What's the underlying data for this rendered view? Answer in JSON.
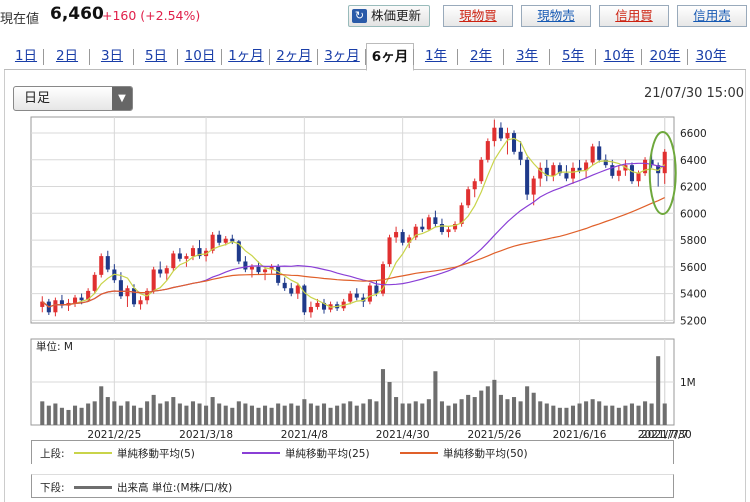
{
  "header": {
    "current_label": "現在値",
    "price": "6,460",
    "change": "+160 (+2.54%)",
    "update_button": "株価更新",
    "buttons": [
      {
        "label": "現物買",
        "kind": "buy"
      },
      {
        "label": "現物売",
        "kind": "sell"
      },
      {
        "label": "信用買",
        "kind": "buy"
      },
      {
        "label": "信用売",
        "kind": "sell"
      }
    ]
  },
  "tabs": [
    "1日",
    "2日",
    "3日",
    "5日",
    "10日",
    "1ヶ月",
    "2ヶ月",
    "3ヶ月",
    "6ヶ月",
    "1年",
    "2年",
    "3年",
    "5年",
    "10年",
    "20年",
    "30年"
  ],
  "selected_tab": "6ヶ月",
  "chart": {
    "interval_select": "日足",
    "datetime": "21/07/30 15:00",
    "volume_unit_label": "単位: M",
    "volume_tick_label": "1M"
  },
  "legend": {
    "upper_label": "上段:",
    "lower_label": "下段:",
    "ma": [
      {
        "label": "単純移動平均(5)",
        "color": "#c9d44a"
      },
      {
        "label": "単純移動平均(25)",
        "color": "#8a3fd6"
      },
      {
        "label": "単純移動平均(50)",
        "color": "#e0602a"
      }
    ],
    "volume_label": "出来高 単位:(M株/口/枚)"
  },
  "colors": {
    "up": "#e03030",
    "down": "#1f3a8a",
    "volume": "#6e6e6e",
    "accent": "#e0204a",
    "highlight_ellipse": "#6ea83c"
  },
  "chart_data": {
    "type": "candlestick",
    "x_labels": [
      "2021/2/25",
      "2021/3/18",
      "2021/4/8",
      "2021/4/30",
      "2021/5/26",
      "2021/6/16",
      "2021/7/7",
      "2021/7/30"
    ],
    "y_ticks": [
      5200,
      5400,
      5600,
      5800,
      6000,
      6200,
      6400,
      6600
    ],
    "ylim": [
      5180,
      6720
    ],
    "volume_ylim": [
      0,
      2.0
    ],
    "volume_ticks": [
      1
    ],
    "candles": [
      [
        5300,
        5380,
        5260,
        5340,
        0.55
      ],
      [
        5340,
        5360,
        5240,
        5260,
        0.45
      ],
      [
        5260,
        5370,
        5230,
        5350,
        0.5
      ],
      [
        5350,
        5390,
        5290,
        5310,
        0.4
      ],
      [
        5310,
        5360,
        5270,
        5330,
        0.35
      ],
      [
        5330,
        5390,
        5300,
        5370,
        0.45
      ],
      [
        5370,
        5400,
        5320,
        5350,
        0.4
      ],
      [
        5350,
        5440,
        5340,
        5420,
        0.5
      ],
      [
        5420,
        5560,
        5400,
        5540,
        0.55
      ],
      [
        5540,
        5700,
        5520,
        5680,
        0.9
      ],
      [
        5680,
        5720,
        5560,
        5580,
        0.65
      ],
      [
        5580,
        5620,
        5480,
        5500,
        0.55
      ],
      [
        5500,
        5560,
        5360,
        5380,
        0.45
      ],
      [
        5380,
        5460,
        5300,
        5440,
        0.55
      ],
      [
        5440,
        5470,
        5300,
        5320,
        0.45
      ],
      [
        5320,
        5380,
        5280,
        5350,
        0.4
      ],
      [
        5350,
        5440,
        5320,
        5420,
        0.55
      ],
      [
        5420,
        5600,
        5400,
        5580,
        0.7
      ],
      [
        5580,
        5640,
        5520,
        5550,
        0.5
      ],
      [
        5550,
        5610,
        5500,
        5590,
        0.55
      ],
      [
        5590,
        5720,
        5570,
        5700,
        0.65
      ],
      [
        5700,
        5740,
        5640,
        5660,
        0.5
      ],
      [
        5660,
        5700,
        5600,
        5680,
        0.45
      ],
      [
        5680,
        5760,
        5650,
        5740,
        0.55
      ],
      [
        5740,
        5800,
        5660,
        5680,
        0.5
      ],
      [
        5680,
        5740,
        5640,
        5720,
        0.45
      ],
      [
        5720,
        5860,
        5700,
        5840,
        0.65
      ],
      [
        5840,
        5870,
        5760,
        5780,
        0.5
      ],
      [
        5780,
        5830,
        5760,
        5810,
        0.45
      ],
      [
        5810,
        5840,
        5770,
        5790,
        0.4
      ],
      [
        5790,
        5800,
        5620,
        5640,
        0.55
      ],
      [
        5640,
        5680,
        5560,
        5580,
        0.5
      ],
      [
        5580,
        5620,
        5520,
        5600,
        0.45
      ],
      [
        5600,
        5640,
        5540,
        5560,
        0.4
      ],
      [
        5560,
        5600,
        5500,
        5580,
        0.45
      ],
      [
        5580,
        5620,
        5550,
        5600,
        0.4
      ],
      [
        5600,
        5620,
        5460,
        5480,
        0.5
      ],
      [
        5480,
        5520,
        5420,
        5440,
        0.45
      ],
      [
        5440,
        5480,
        5380,
        5400,
        0.5
      ],
      [
        5400,
        5480,
        5360,
        5460,
        0.45
      ],
      [
        5460,
        5470,
        5240,
        5260,
        0.6
      ],
      [
        5260,
        5340,
        5220,
        5300,
        0.5
      ],
      [
        5300,
        5360,
        5280,
        5330,
        0.45
      ],
      [
        5330,
        5360,
        5250,
        5280,
        0.5
      ],
      [
        5280,
        5340,
        5260,
        5320,
        0.4
      ],
      [
        5320,
        5340,
        5270,
        5290,
        0.45
      ],
      [
        5290,
        5360,
        5270,
        5340,
        0.5
      ],
      [
        5340,
        5420,
        5320,
        5400,
        0.55
      ],
      [
        5400,
        5440,
        5350,
        5370,
        0.45
      ],
      [
        5370,
        5400,
        5300,
        5340,
        0.5
      ],
      [
        5340,
        5480,
        5320,
        5460,
        0.6
      ],
      [
        5460,
        5500,
        5380,
        5400,
        0.55
      ],
      [
        5400,
        5640,
        5380,
        5620,
        1.3
      ],
      [
        5620,
        5840,
        5600,
        5820,
        1.0
      ],
      [
        5820,
        5900,
        5780,
        5860,
        0.65
      ],
      [
        5860,
        5880,
        5760,
        5780,
        0.5
      ],
      [
        5780,
        5840,
        5740,
        5820,
        0.5
      ],
      [
        5820,
        5920,
        5800,
        5900,
        0.55
      ],
      [
        5900,
        5960,
        5860,
        5880,
        0.5
      ],
      [
        5880,
        5990,
        5870,
        5970,
        0.6
      ],
      [
        5970,
        6020,
        5900,
        5920,
        1.25
      ],
      [
        5920,
        5960,
        5840,
        5860,
        0.55
      ],
      [
        5860,
        5900,
        5820,
        5880,
        0.45
      ],
      [
        5880,
        5940,
        5860,
        5920,
        0.5
      ],
      [
        5920,
        6080,
        5900,
        6060,
        0.6
      ],
      [
        6060,
        6200,
        6040,
        6180,
        0.7
      ],
      [
        6180,
        6260,
        6120,
        6240,
        0.65
      ],
      [
        6240,
        6420,
        6220,
        6400,
        0.8
      ],
      [
        6400,
        6560,
        6380,
        6540,
        0.9
      ],
      [
        6540,
        6700,
        6500,
        6640,
        1.05
      ],
      [
        6640,
        6680,
        6540,
        6560,
        0.7
      ],
      [
        6560,
        6640,
        6440,
        6600,
        0.6
      ],
      [
        6600,
        6620,
        6440,
        6460,
        0.65
      ],
      [
        6460,
        6540,
        6360,
        6400,
        0.55
      ],
      [
        6400,
        6420,
        6100,
        6140,
        0.9
      ],
      [
        6140,
        6280,
        6060,
        6260,
        0.75
      ],
      [
        6260,
        6380,
        6200,
        6340,
        0.55
      ],
      [
        6340,
        6400,
        6240,
        6280,
        0.5
      ],
      [
        6280,
        6380,
        6240,
        6360,
        0.45
      ],
      [
        6360,
        6380,
        6280,
        6300,
        0.4
      ],
      [
        6300,
        6360,
        6240,
        6260,
        0.4
      ],
      [
        6260,
        6380,
        6220,
        6340,
        0.45
      ],
      [
        6340,
        6400,
        6300,
        6320,
        0.5
      ],
      [
        6320,
        6400,
        6260,
        6380,
        0.55
      ],
      [
        6380,
        6520,
        6360,
        6500,
        0.6
      ],
      [
        6500,
        6540,
        6380,
        6400,
        0.55
      ],
      [
        6400,
        6440,
        6340,
        6360,
        0.45
      ],
      [
        6360,
        6400,
        6260,
        6280,
        0.45
      ],
      [
        6280,
        6360,
        6240,
        6320,
        0.4
      ],
      [
        6320,
        6400,
        6280,
        6360,
        0.45
      ],
      [
        6360,
        6380,
        6220,
        6240,
        0.5
      ],
      [
        6240,
        6320,
        6200,
        6300,
        0.45
      ],
      [
        6300,
        6420,
        6280,
        6400,
        0.55
      ],
      [
        6400,
        6460,
        6340,
        6360,
        0.5
      ],
      [
        6360,
        6380,
        6200,
        6300,
        1.6
      ],
      [
        6300,
        6480,
        6220,
        6460,
        0.5
      ]
    ]
  }
}
